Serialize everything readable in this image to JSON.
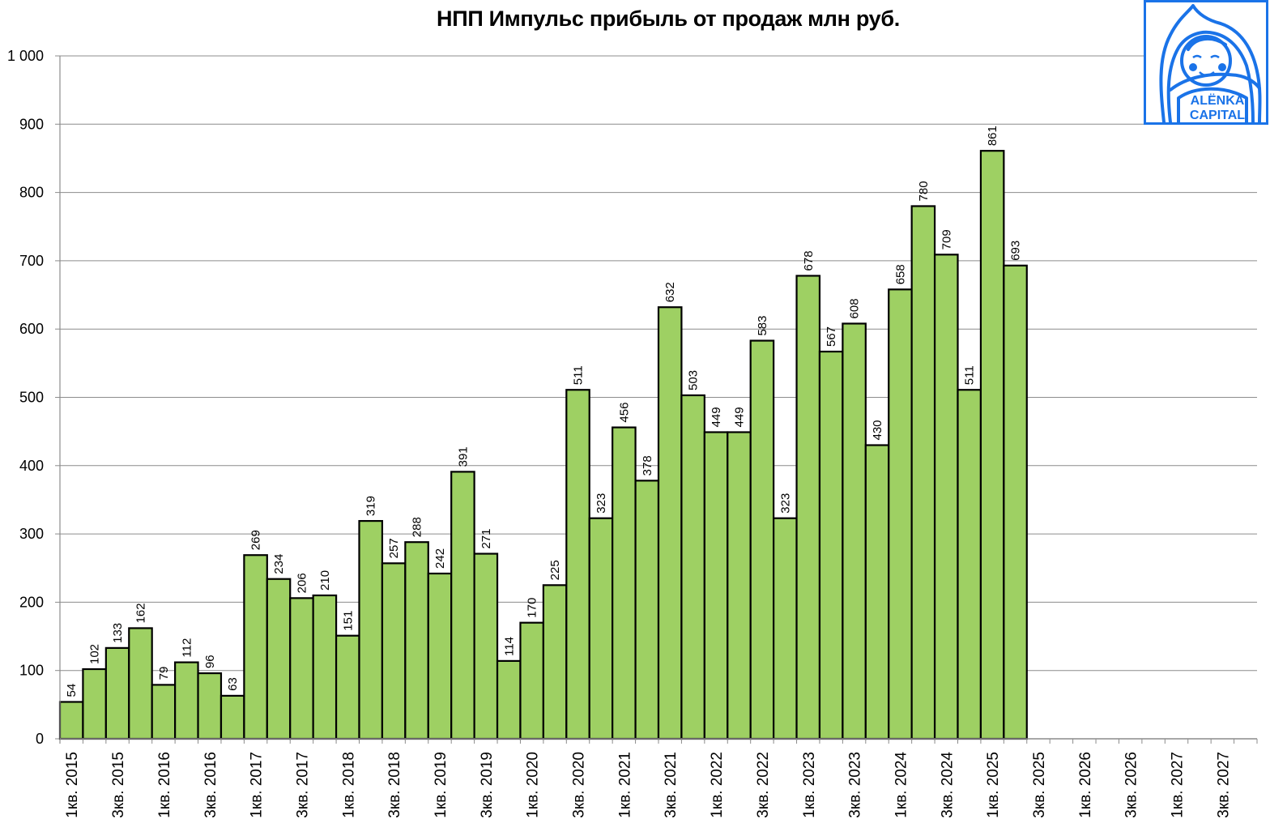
{
  "chart_title": "НПП Импульс прибыль от продаж млн руб.",
  "colors": {
    "bar_fill": "#9ed063",
    "bar_stroke": "#000000",
    "grid": "#8c8c8c",
    "logo_blue": "#1a73e8"
  },
  "logo": {
    "line1": "ALЁNKA",
    "line2": "CAPITAL"
  },
  "chart_data": {
    "type": "bar",
    "title": "НПП Импульс прибыль от продаж млн руб.",
    "xlabel": "",
    "ylabel": "",
    "ylim": [
      0,
      1000
    ],
    "yticks": [
      0,
      100,
      200,
      300,
      400,
      500,
      600,
      700,
      800,
      900,
      1000
    ],
    "ytick_labels": [
      "0",
      "100",
      "200",
      "300",
      "400",
      "500",
      "600",
      "700",
      "800",
      "900",
      "1 000"
    ],
    "grid": true,
    "legend": null,
    "categories": [
      "1кв. 2015",
      "2кв. 2015",
      "3кв. 2015",
      "4кв. 2015",
      "1кв. 2016",
      "2кв. 2016",
      "3кв. 2016",
      "4кв. 2016",
      "1кв. 2017",
      "2кв. 2017",
      "3кв. 2017",
      "4кв. 2017",
      "1кв. 2018",
      "2кв. 2018",
      "3кв. 2018",
      "4кв. 2018",
      "1кв. 2019",
      "2кв. 2019",
      "3кв. 2019",
      "4кв. 2019",
      "1кв. 2020",
      "2кв. 2020",
      "3кв. 2020",
      "4кв. 2020",
      "1кв. 2021",
      "2кв. 2021",
      "3кв. 2021",
      "4кв. 2021",
      "1кв. 2022",
      "2кв. 2022",
      "3кв. 2022",
      "4кв. 2022",
      "1кв. 2023",
      "2кв. 2023",
      "3кв. 2023",
      "4кв. 2023",
      "1кв. 2024",
      "2кв. 2024",
      "3кв. 2024",
      "4кв. 2024",
      "1кв. 2025",
      "2кв. 2025",
      "3кв. 2025",
      "4кв. 2025",
      "1кв. 2026",
      "2кв. 2026",
      "3кв. 2026",
      "4кв. 2026",
      "1кв. 2027",
      "2кв. 2027",
      "3кв. 2027",
      "4кв. 2027"
    ],
    "visible_xtick_labels": [
      "1кв. 2015",
      "3кв. 2015",
      "1кв. 2016",
      "3кв. 2016",
      "1кв. 2017",
      "3кв. 2017",
      "1кв. 2018",
      "3кв. 2018",
      "1кв. 2019",
      "3кв. 2019",
      "1кв. 2020",
      "3кв. 2020",
      "1кв. 2021",
      "3кв. 2021",
      "1кв. 2022",
      "3кв. 2022",
      "1кв. 2023",
      "3кв. 2023",
      "1кв. 2024",
      "3кв. 2024",
      "1кв. 2025",
      "3кв. 2025",
      "1кв. 2026",
      "3кв. 2026",
      "1кв. 2027",
      "3кв. 2027"
    ],
    "values": [
      54,
      102,
      133,
      162,
      79,
      112,
      96,
      63,
      269,
      234,
      206,
      210,
      151,
      319,
      257,
      288,
      242,
      391,
      271,
      114,
      170,
      225,
      511,
      323,
      456,
      378,
      632,
      503,
      449,
      449,
      583,
      323,
      678,
      567,
      608,
      430,
      658,
      780,
      709,
      511,
      861,
      693,
      null,
      null,
      null,
      null,
      null,
      null,
      null,
      null,
      null,
      null
    ]
  }
}
